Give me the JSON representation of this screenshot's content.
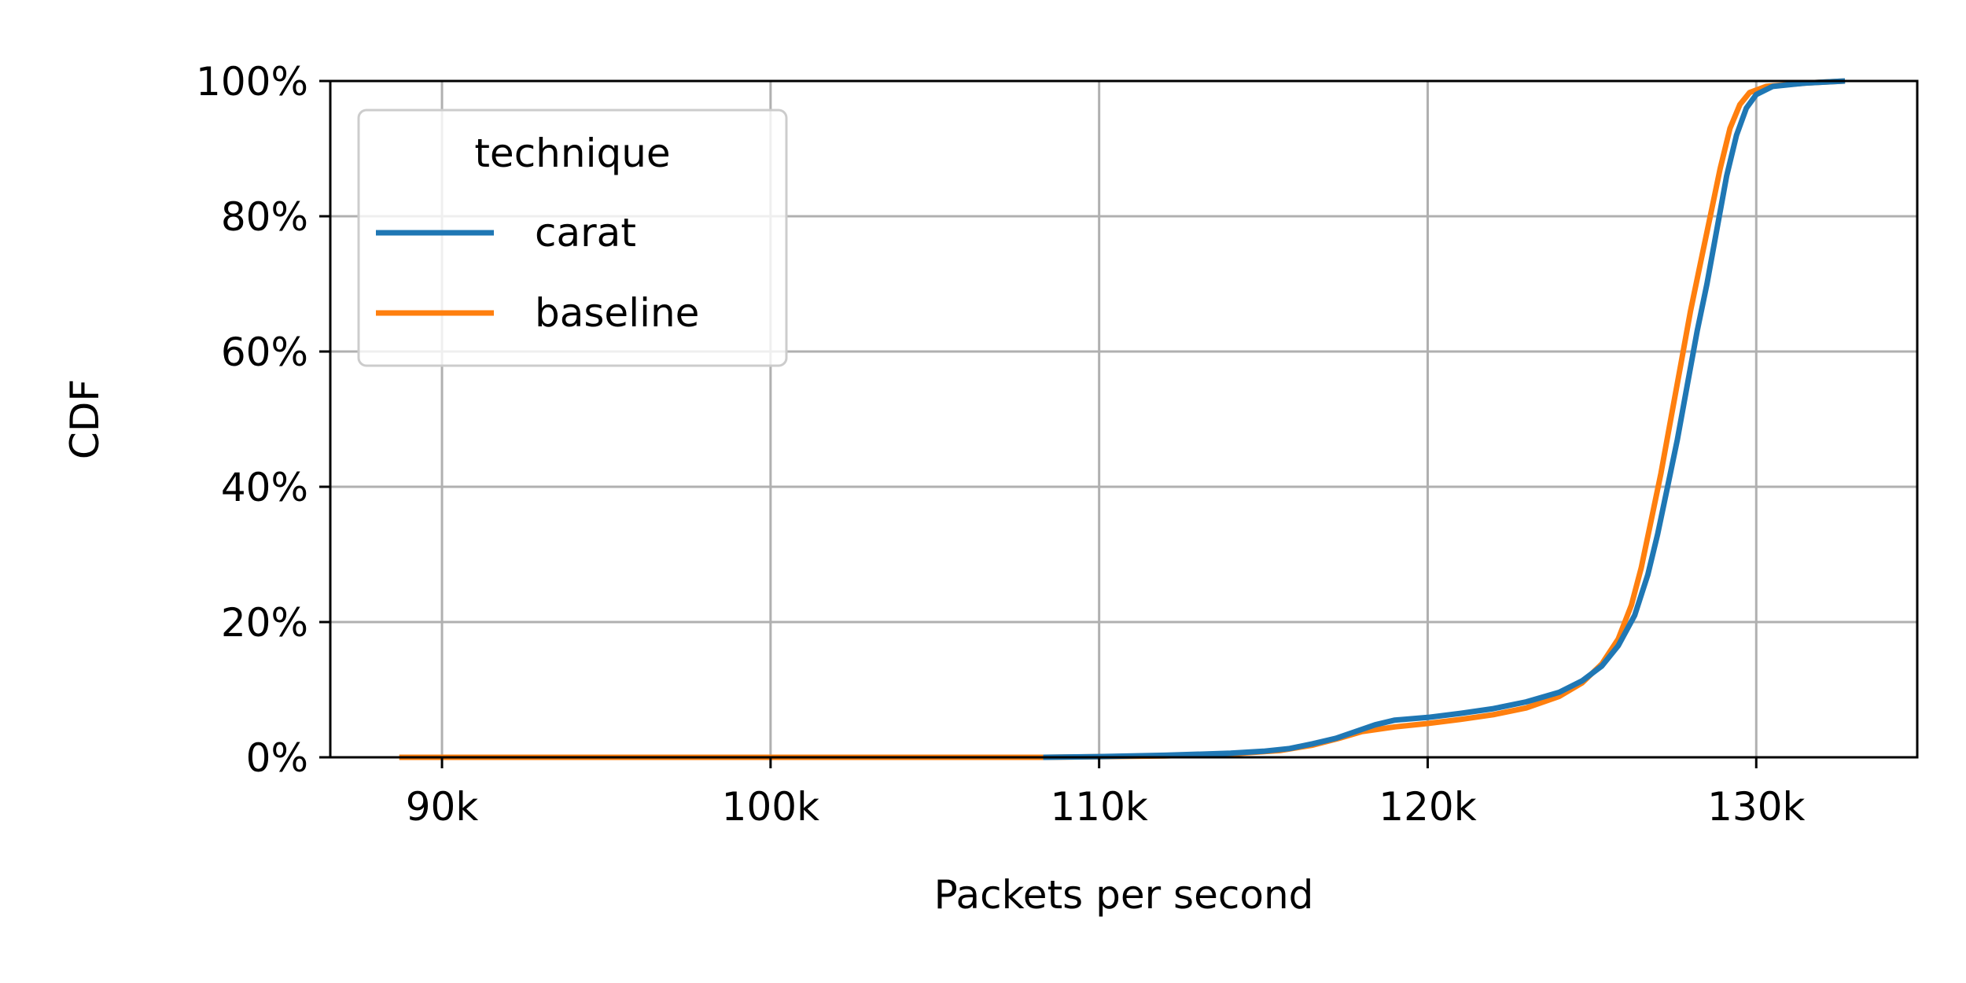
{
  "chart_data": {
    "type": "line",
    "title": "",
    "xlabel": "Packets per second",
    "ylabel": "CDF",
    "xlim": [
      86600,
      134900
    ],
    "ylim": [
      0,
      100
    ],
    "xticks": [
      {
        "value": 90000,
        "label": "90k"
      },
      {
        "value": 100000,
        "label": "100k"
      },
      {
        "value": 110000,
        "label": "110k"
      },
      {
        "value": 120000,
        "label": "120k"
      },
      {
        "value": 130000,
        "label": "130k"
      }
    ],
    "yticks": [
      {
        "value": 0,
        "label": "0%"
      },
      {
        "value": 20,
        "label": "20%"
      },
      {
        "value": 40,
        "label": "40%"
      },
      {
        "value": 60,
        "label": "60%"
      },
      {
        "value": 80,
        "label": "80%"
      },
      {
        "value": 100,
        "label": "100%"
      }
    ],
    "grid": true,
    "legend": {
      "title": "technique",
      "placement": "top-left"
    },
    "series": [
      {
        "name": "carat",
        "color": "#1f77b4",
        "points": [
          [
            108300,
            0
          ],
          [
            110000,
            0.1
          ],
          [
            112000,
            0.3
          ],
          [
            114000,
            0.6
          ],
          [
            115000,
            0.9
          ],
          [
            115800,
            1.3
          ],
          [
            116500,
            2.0
          ],
          [
            117200,
            2.8
          ],
          [
            117800,
            3.8
          ],
          [
            118400,
            4.8
          ],
          [
            119000,
            5.5
          ],
          [
            120000,
            5.9
          ],
          [
            121000,
            6.5
          ],
          [
            122000,
            7.2
          ],
          [
            123000,
            8.2
          ],
          [
            124000,
            9.6
          ],
          [
            124700,
            11.3
          ],
          [
            125300,
            13.5
          ],
          [
            125800,
            16.5
          ],
          [
            126300,
            21.0
          ],
          [
            126700,
            27.0
          ],
          [
            127000,
            33.0
          ],
          [
            127300,
            40.0
          ],
          [
            127600,
            47.0
          ],
          [
            127900,
            55.0
          ],
          [
            128200,
            63.0
          ],
          [
            128500,
            70.0
          ],
          [
            128800,
            78.0
          ],
          [
            129100,
            86.0
          ],
          [
            129400,
            92.0
          ],
          [
            129700,
            96.0
          ],
          [
            130000,
            98.0
          ],
          [
            130500,
            99.2
          ],
          [
            131500,
            99.7
          ],
          [
            132700,
            100
          ]
        ]
      },
      {
        "name": "baseline",
        "color": "#ff7f0e",
        "points": [
          [
            88700,
            0
          ],
          [
            100000,
            0
          ],
          [
            108300,
            0
          ],
          [
            112000,
            0.2
          ],
          [
            114000,
            0.5
          ],
          [
            115500,
            1.0
          ],
          [
            116500,
            1.8
          ],
          [
            117300,
            2.8
          ],
          [
            118000,
            3.8
          ],
          [
            119000,
            4.5
          ],
          [
            120000,
            5.0
          ],
          [
            121000,
            5.6
          ],
          [
            122000,
            6.3
          ],
          [
            123000,
            7.3
          ],
          [
            124000,
            9.0
          ],
          [
            124700,
            11.0
          ],
          [
            125300,
            13.8
          ],
          [
            125800,
            17.5
          ],
          [
            126200,
            22.5
          ],
          [
            126500,
            28.0
          ],
          [
            126800,
            35.0
          ],
          [
            127100,
            42.0
          ],
          [
            127400,
            50.0
          ],
          [
            127700,
            58.0
          ],
          [
            128000,
            66.0
          ],
          [
            128300,
            73.0
          ],
          [
            128600,
            80.0
          ],
          [
            128900,
            87.0
          ],
          [
            129200,
            93.0
          ],
          [
            129500,
            96.5
          ],
          [
            129800,
            98.3
          ],
          [
            130300,
            99.2
          ],
          [
            131500,
            99.7
          ],
          [
            132700,
            100
          ]
        ]
      }
    ]
  }
}
